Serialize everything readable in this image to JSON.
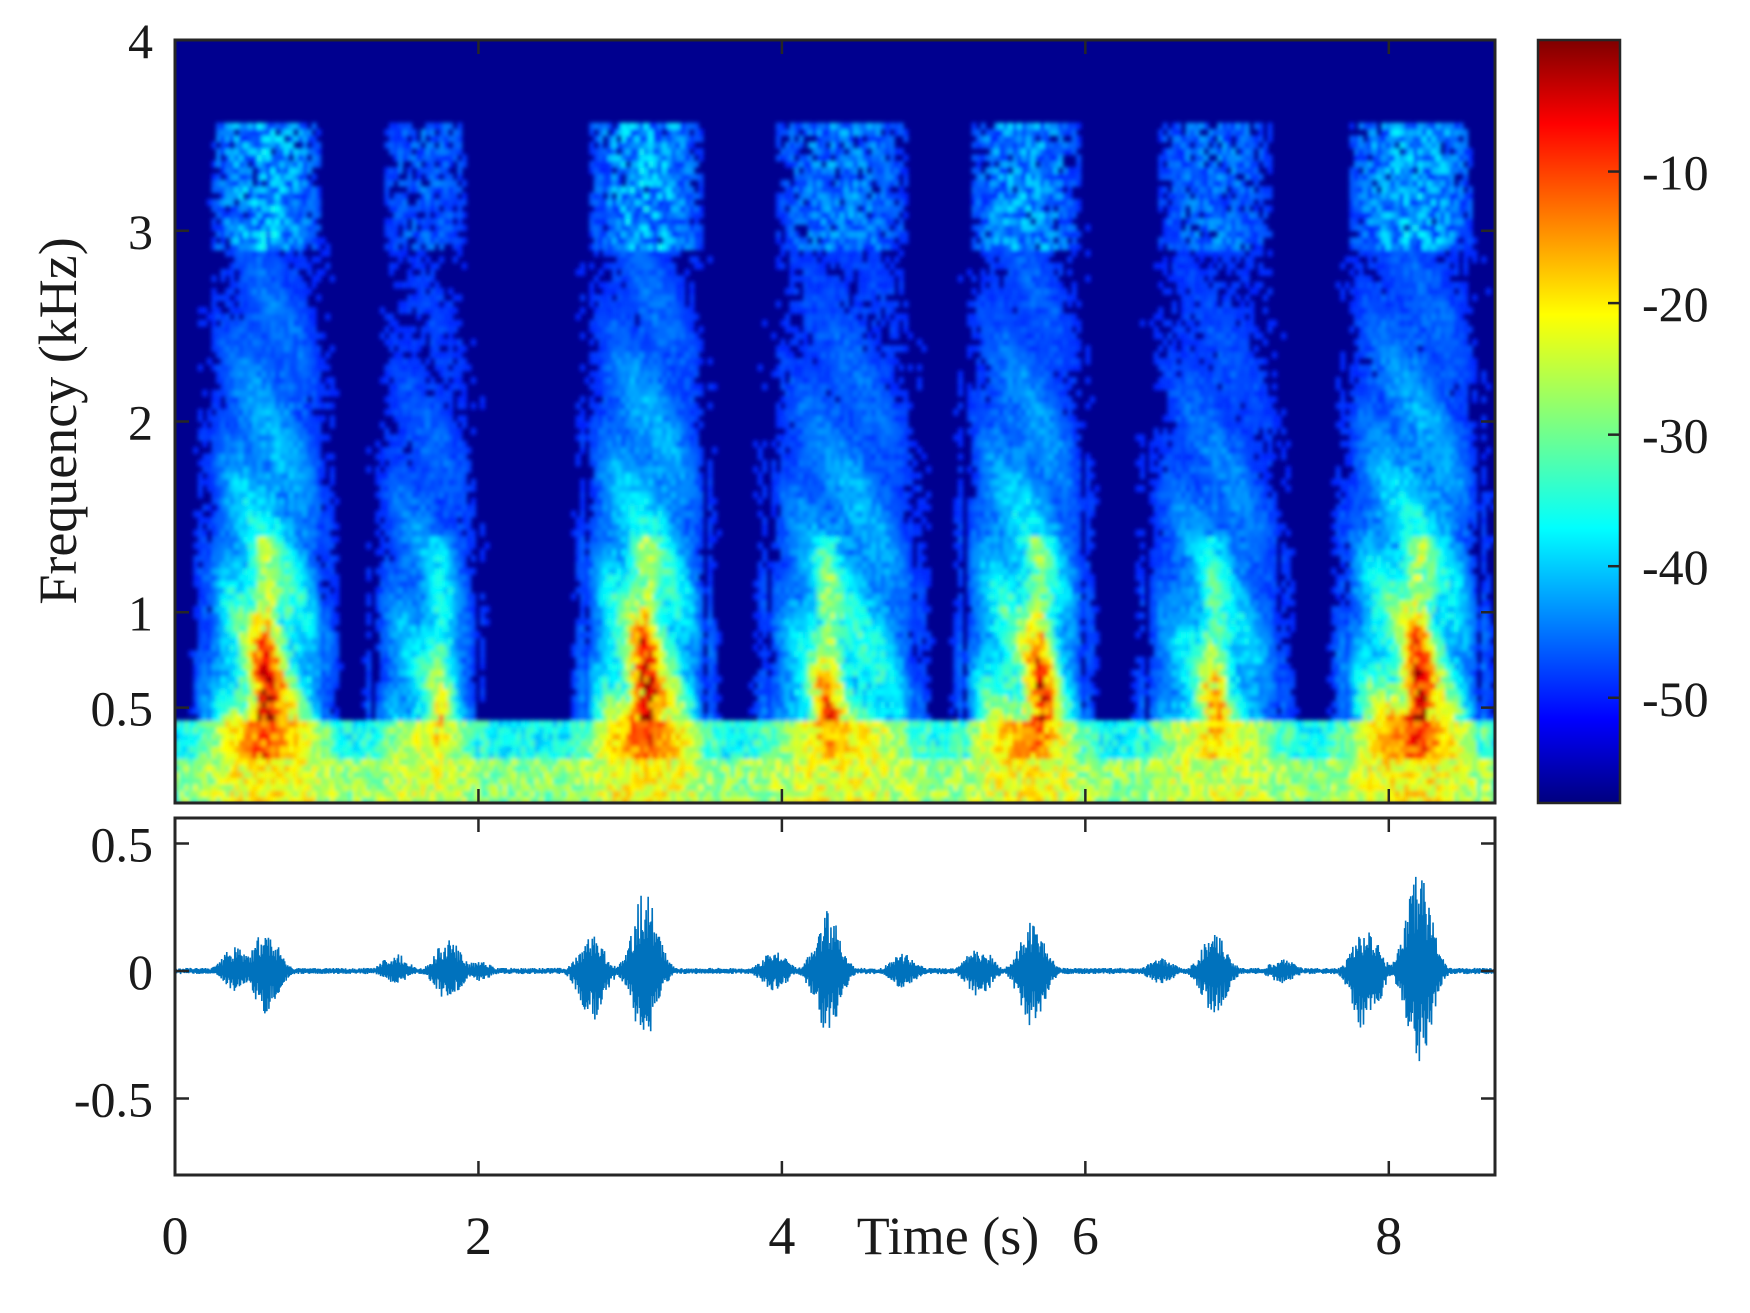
{
  "chart_data": [
    {
      "type": "heatmap",
      "title": "",
      "xlabel": "",
      "ylabel": "Frequency (kHz)",
      "xlim": [
        0,
        8.7
      ],
      "ylim": [
        0,
        4
      ],
      "y_scale": "linear",
      "xticks": [
        2,
        4,
        6,
        8
      ],
      "yticks": [
        0.5,
        1,
        2,
        3,
        4
      ],
      "yticklabels": [
        "0.5",
        "1",
        "2",
        "3",
        "4"
      ],
      "colormap": "jet",
      "colorbar": {
        "range": [
          -58,
          0
        ],
        "ticks": [
          -10,
          -20,
          -30,
          -40,
          -50
        ],
        "ticklabels": [
          "-10",
          "-20",
          "-30",
          "-40",
          "-50"
        ]
      },
      "energy_segments_s": [
        {
          "start": 0.2,
          "end": 1.0,
          "peak_s": 0.6,
          "strength": 1.0
        },
        {
          "start": 1.3,
          "end": 2.0,
          "peak_s": 1.75,
          "strength": 0.55
        },
        {
          "start": 2.7,
          "end": 3.5,
          "peak_s": 3.1,
          "strength": 1.0
        },
        {
          "start": 3.9,
          "end": 4.9,
          "peak_s": 4.3,
          "strength": 0.75
        },
        {
          "start": 5.2,
          "end": 6.0,
          "peak_s": 5.7,
          "strength": 0.9
        },
        {
          "start": 6.4,
          "end": 7.3,
          "peak_s": 6.85,
          "strength": 0.65
        },
        {
          "start": 7.7,
          "end": 8.6,
          "peak_s": 8.2,
          "strength": 1.0
        }
      ]
    },
    {
      "type": "line",
      "title": "",
      "xlabel": "Time (s)",
      "ylabel": "",
      "xlim": [
        0,
        8.7
      ],
      "ylim": [
        -0.8,
        0.6
      ],
      "xticks": [
        0,
        2,
        4,
        6,
        8
      ],
      "xticklabels": [
        "0",
        "2",
        "4",
        "6",
        "8"
      ],
      "yticks": [
        0.5,
        0,
        -0.5
      ],
      "yticklabels": [
        "0.5",
        "0",
        "-0.5"
      ],
      "line_color": "#0072BD",
      "envelope_peaks": [
        {
          "t": 0.4,
          "max": 0.1,
          "min": -0.08
        },
        {
          "t": 0.6,
          "max": 0.17,
          "min": -0.17
        },
        {
          "t": 1.45,
          "max": 0.07,
          "min": -0.05
        },
        {
          "t": 1.8,
          "max": 0.13,
          "min": -0.12
        },
        {
          "t": 2.0,
          "max": 0.04,
          "min": -0.04
        },
        {
          "t": 2.75,
          "max": 0.14,
          "min": -0.2
        },
        {
          "t": 3.1,
          "max": 0.32,
          "min": -0.28
        },
        {
          "t": 3.95,
          "max": 0.08,
          "min": -0.08
        },
        {
          "t": 4.3,
          "max": 0.24,
          "min": -0.25
        },
        {
          "t": 4.8,
          "max": 0.07,
          "min": -0.07
        },
        {
          "t": 5.3,
          "max": 0.1,
          "min": -0.1
        },
        {
          "t": 5.65,
          "max": 0.2,
          "min": -0.22
        },
        {
          "t": 6.5,
          "max": 0.05,
          "min": -0.05
        },
        {
          "t": 6.85,
          "max": 0.15,
          "min": -0.17
        },
        {
          "t": 7.3,
          "max": 0.05,
          "min": -0.05
        },
        {
          "t": 7.85,
          "max": 0.18,
          "min": -0.25
        },
        {
          "t": 8.2,
          "max": 0.4,
          "min": -0.37
        }
      ]
    }
  ]
}
